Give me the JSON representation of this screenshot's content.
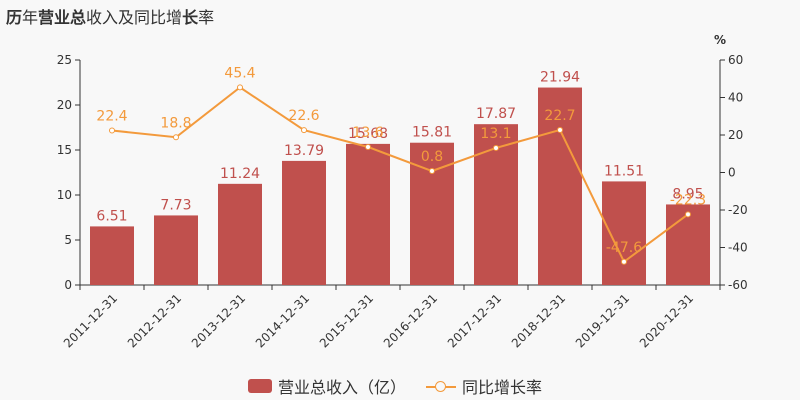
{
  "title": {
    "parts": [
      {
        "text": "历",
        "bold": true
      },
      {
        "text": "年",
        "bold": false
      },
      {
        "text": "营业总",
        "bold": true
      },
      {
        "text": "收入及同比增",
        "bold": false
      },
      {
        "text": "长",
        "bold": true
      },
      {
        "text": "率",
        "bold": false
      }
    ]
  },
  "legend": {
    "bar_label": "营业总收入（亿）",
    "line_label": "同比增长率"
  },
  "colors": {
    "bar": "#c0504d",
    "line": "#f39a3c",
    "bar_label": "#c0504d",
    "line_label": "#f39a3c"
  },
  "chart_data": {
    "type": "bar+line",
    "title": "历年营业总收入及同比增长率",
    "categories": [
      "2011-12-31",
      "2012-12-31",
      "2013-12-31",
      "2014-12-31",
      "2015-12-31",
      "2016-12-31",
      "2017-12-31",
      "2018-12-31",
      "2019-12-31",
      "2020-12-31"
    ],
    "series": [
      {
        "name": "营业总收入（亿）",
        "type": "bar",
        "axis": "left",
        "values": [
          6.51,
          7.73,
          11.24,
          13.79,
          15.68,
          15.81,
          17.87,
          21.94,
          11.51,
          8.95
        ]
      },
      {
        "name": "同比增长率",
        "type": "line",
        "axis": "right",
        "values": [
          22.4,
          18.8,
          45.4,
          22.6,
          13.6,
          0.8,
          13.1,
          22.7,
          -47.6,
          -22.3
        ]
      }
    ],
    "left_axis": {
      "ylim": [
        0,
        25
      ],
      "ticks": [
        0,
        5,
        10,
        15,
        20,
        25
      ]
    },
    "right_axis": {
      "label": "%",
      "ylim": [
        -60,
        60
      ],
      "ticks": [
        -60,
        -40,
        -20,
        0,
        20,
        40,
        60
      ]
    },
    "grid": false,
    "legend_position": "bottom"
  }
}
